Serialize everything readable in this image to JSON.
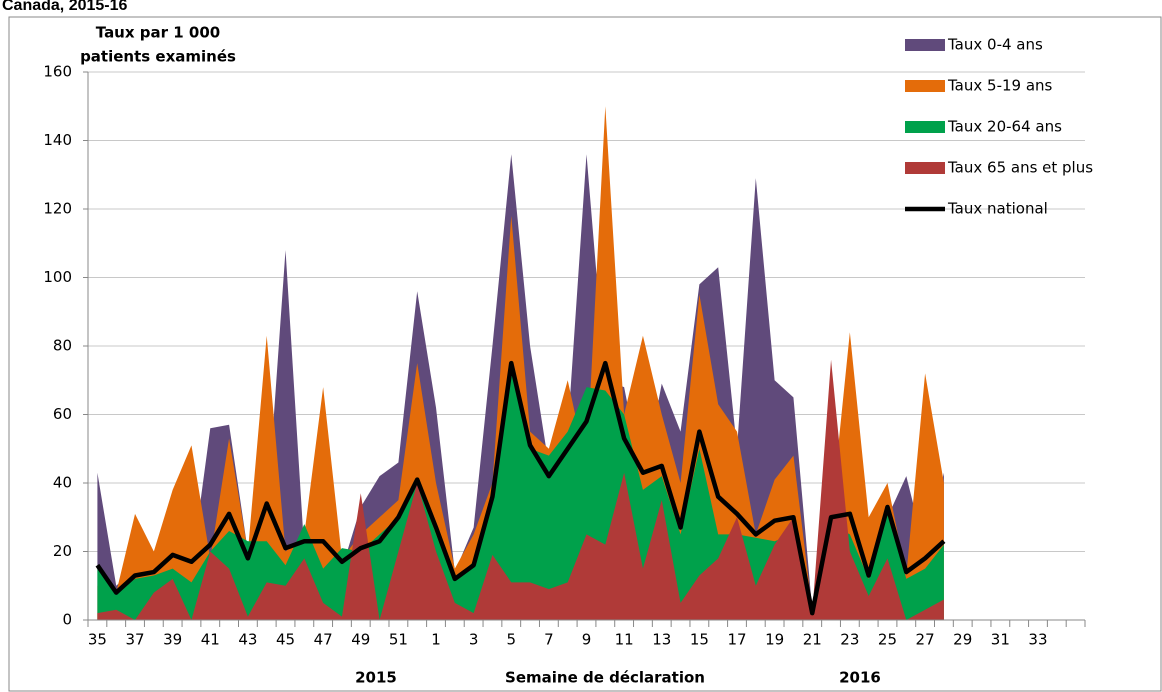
{
  "chart_data": {
    "type": "area",
    "title": "Canada, 2015-16",
    "y_label": [
      "Taux par 1 000",
      "patients examinés"
    ],
    "x_label": "Semaine de déclaration",
    "year_labels": [
      "2015",
      "2016"
    ],
    "categories": [
      "35",
      null,
      "37",
      null,
      "39",
      null,
      "41",
      null,
      "43",
      null,
      "45",
      null,
      "47",
      null,
      "49",
      null,
      "51",
      null,
      "1",
      null,
      "3",
      null,
      "5",
      null,
      "7",
      null,
      "9",
      null,
      "11",
      null,
      "13",
      null,
      "15",
      null,
      "17",
      null,
      "19",
      null,
      "21",
      null,
      "23",
      null,
      "25",
      null,
      "27",
      null,
      "29",
      null,
      "31",
      null,
      "33",
      null,
      null
    ],
    "series": [
      {
        "name": "Taux 0-4 ans",
        "color": "#604a7b",
        "values": [
          43,
          10,
          15,
          18,
          18,
          15,
          56,
          57,
          20,
          30,
          108,
          20,
          40,
          15,
          33,
          42,
          46,
          96,
          62,
          14,
          27,
          80,
          136,
          80,
          45,
          55,
          136,
          70,
          68,
          40,
          69,
          55,
          98,
          103,
          50,
          129,
          70,
          65,
          3,
          40,
          30,
          25,
          30,
          42,
          20,
          43,
          null,
          null,
          null,
          null,
          null,
          null,
          null
        ]
      },
      {
        "name": "Taux 5-19 ans",
        "color": "#e46c0a",
        "values": [
          10,
          8,
          31,
          20,
          38,
          51,
          18,
          53,
          20,
          83,
          20,
          25,
          68,
          18,
          25,
          30,
          35,
          75,
          40,
          15,
          25,
          40,
          118,
          55,
          50,
          70,
          45,
          150,
          60,
          83,
          60,
          40,
          95,
          63,
          55,
          25,
          41,
          48,
          3,
          30,
          84,
          30,
          40,
          13,
          72,
          40,
          null,
          null,
          null,
          null,
          null,
          null,
          null
        ]
      },
      {
        "name": "Taux 20-64 ans",
        "color": "#00a14b",
        "values": [
          15,
          8,
          12,
          13,
          15,
          11,
          20,
          26,
          23,
          23,
          16,
          28,
          15,
          21,
          20,
          25,
          30,
          40,
          25,
          12,
          17,
          35,
          75,
          50,
          48,
          55,
          68,
          67,
          60,
          38,
          42,
          25,
          50,
          25,
          25,
          24,
          23,
          25,
          2,
          28,
          25,
          12,
          32,
          12,
          15,
          22,
          null,
          null,
          null,
          null,
          null,
          null,
          null
        ]
      },
      {
        "name": "Taux 65 ans et plus",
        "color": "#b03a38",
        "values": [
          2,
          3,
          0,
          8,
          12,
          0,
          20,
          15,
          1,
          11,
          10,
          18,
          5,
          1,
          37,
          0,
          20,
          40,
          20,
          5,
          2,
          19,
          11,
          11,
          9,
          11,
          25,
          22,
          43,
          15,
          35,
          5,
          13,
          18,
          30,
          10,
          22,
          30,
          2,
          76,
          20,
          7,
          18,
          0,
          3,
          6,
          null,
          null,
          null,
          null,
          null,
          null,
          null
        ]
      },
      {
        "name": "Taux national",
        "color": "#000000",
        "type": "line",
        "values": [
          16,
          8,
          13,
          14,
          19,
          17,
          22,
          31,
          18,
          34,
          21,
          23,
          23,
          17,
          21,
          23,
          30,
          41,
          27,
          12,
          16,
          36,
          75,
          51,
          42,
          50,
          58,
          75,
          53,
          43,
          45,
          27,
          55,
          36,
          31,
          25,
          29,
          30,
          2,
          30,
          31,
          13,
          33,
          14,
          18,
          23,
          null,
          null,
          null,
          null,
          null,
          null,
          null
        ]
      }
    ],
    "ylim": [
      0,
      160
    ],
    "yticks": [
      0,
      20,
      40,
      60,
      80,
      100,
      120,
      140,
      160
    ],
    "grid": true,
    "legend": "top-right"
  }
}
